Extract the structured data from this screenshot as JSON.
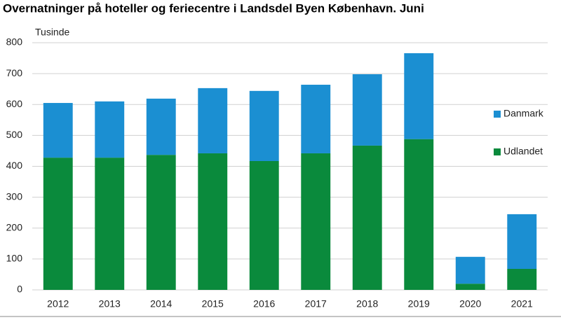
{
  "chart_data": {
    "type": "stacked_bar",
    "title": "Overnatninger på hoteller og feriecentre i Landsdel Byen København. Juni",
    "y_label": "Tusinde",
    "categories": [
      "2012",
      "2013",
      "2014",
      "2015",
      "2016",
      "2017",
      "2018",
      "2019",
      "2020",
      "2021"
    ],
    "series": [
      {
        "name": "Udlandet",
        "color": "#0a8a3c",
        "values": [
          428,
          428,
          437,
          442,
          417,
          442,
          467,
          488,
          20,
          68
        ]
      },
      {
        "name": "Danmark",
        "color": "#1b8fd2",
        "values": [
          177,
          182,
          182,
          211,
          227,
          222,
          231,
          278,
          87,
          177
        ]
      }
    ],
    "ylim": [
      0,
      800
    ],
    "yticks": [
      0,
      100,
      200,
      300,
      400,
      500,
      600,
      700,
      800
    ],
    "grid": true,
    "legend": "right"
  }
}
